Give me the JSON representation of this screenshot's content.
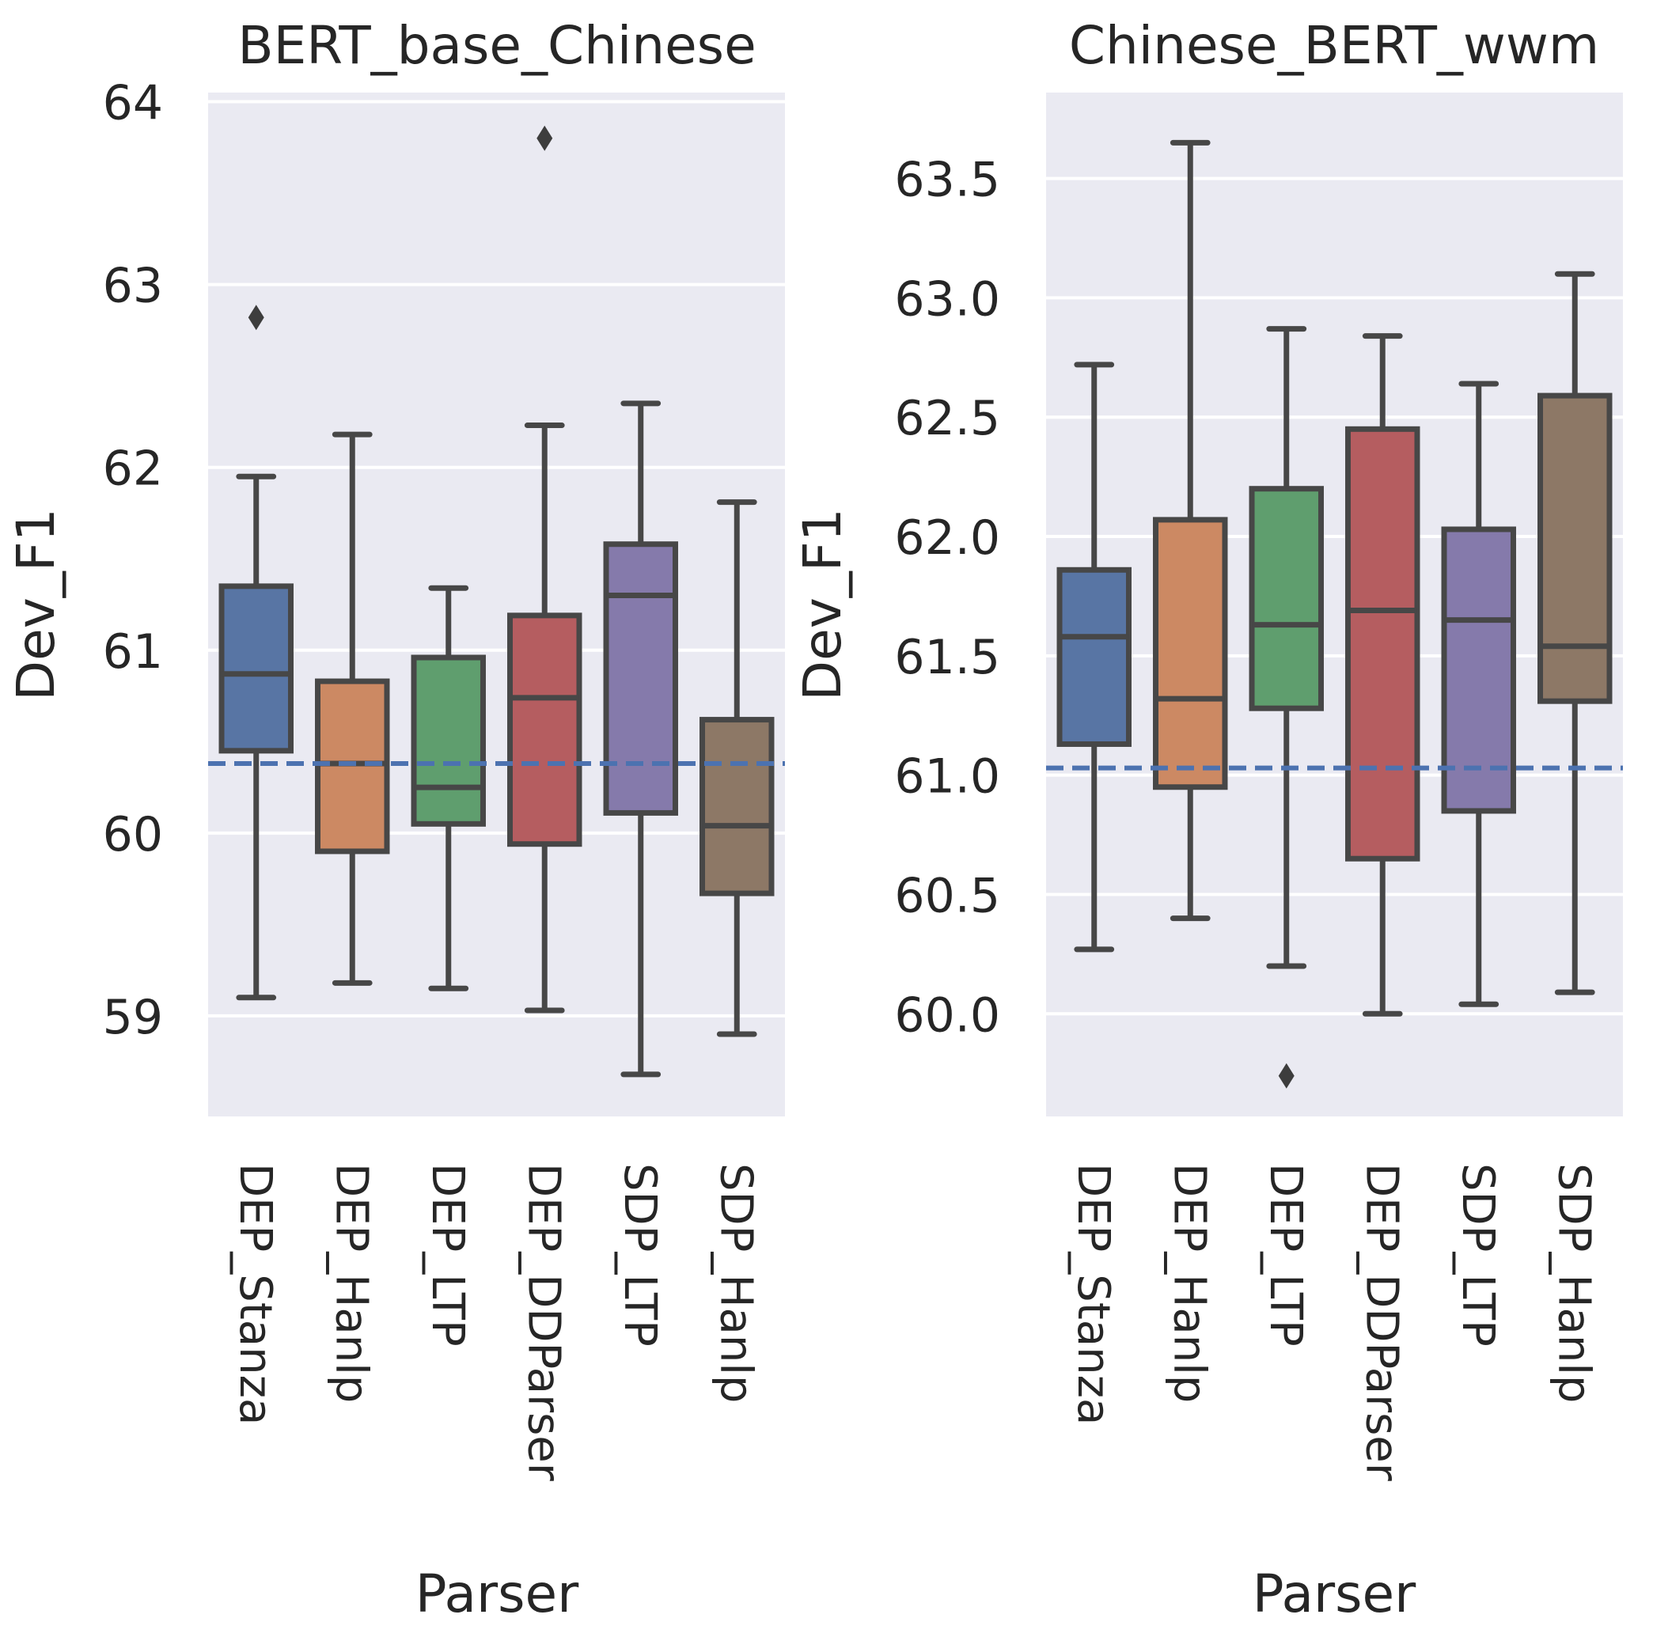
{
  "chart_data": [
    {
      "type": "box",
      "title": "BERT_base_Chinese",
      "xlabel": "Parser",
      "ylabel": "Dev_F1",
      "ylim": [
        58.45,
        64.05
      ],
      "yticks": [
        59,
        60,
        61,
        62,
        63,
        64
      ],
      "ytick_labels": [
        "59",
        "60",
        "61",
        "62",
        "63",
        "64"
      ],
      "reference_line": 60.38,
      "grid": true,
      "categories": [
        "DEP_Stanza",
        "DEP_Hanlp",
        "DEP_LTP",
        "DEP_DDParser",
        "SDP_LTP",
        "SDP_Hanlp"
      ],
      "colors": [
        "#5875a4",
        "#cc8963",
        "#5f9e6e",
        "#b55d60",
        "#857aab",
        "#8d7866"
      ],
      "boxes": [
        {
          "whislo": 59.1,
          "q1": 60.45,
          "med": 60.87,
          "q3": 61.35,
          "whishi": 61.95,
          "fliers": [
            62.82
          ]
        },
        {
          "whislo": 59.18,
          "q1": 59.9,
          "med": 60.38,
          "q3": 60.83,
          "whishi": 62.18,
          "fliers": []
        },
        {
          "whislo": 59.15,
          "q1": 60.05,
          "med": 60.25,
          "q3": 60.96,
          "whishi": 61.34,
          "fliers": []
        },
        {
          "whislo": 59.03,
          "q1": 59.94,
          "med": 60.74,
          "q3": 61.19,
          "whishi": 62.23,
          "fliers": [
            63.8
          ]
        },
        {
          "whislo": 58.68,
          "q1": 60.11,
          "med": 61.3,
          "q3": 61.58,
          "whishi": 62.35,
          "fliers": []
        },
        {
          "whislo": 58.9,
          "q1": 59.67,
          "med": 60.04,
          "q3": 60.62,
          "whishi": 61.81,
          "fliers": []
        }
      ]
    },
    {
      "type": "box",
      "title": "Chinese_BERT_wwm",
      "xlabel": "Parser",
      "ylabel": "Dev_F1",
      "ylim": [
        59.57,
        63.86
      ],
      "yticks": [
        60.0,
        60.5,
        61.0,
        61.5,
        62.0,
        62.5,
        63.0,
        63.5
      ],
      "ytick_labels": [
        "60.0",
        "60.5",
        "61.0",
        "61.5",
        "62.0",
        "62.5",
        "63.0",
        "63.5"
      ],
      "reference_line": 61.03,
      "grid": true,
      "categories": [
        "DEP_Stanza",
        "DEP_Hanlp",
        "DEP_LTP",
        "DEP_DDParser",
        "SDP_LTP",
        "SDP_Hanlp"
      ],
      "colors": [
        "#5875a4",
        "#cc8963",
        "#5f9e6e",
        "#b55d60",
        "#857aab",
        "#8d7866"
      ],
      "boxes": [
        {
          "whislo": 60.27,
          "q1": 61.13,
          "med": 61.58,
          "q3": 61.86,
          "whishi": 62.72,
          "fliers": []
        },
        {
          "whislo": 60.4,
          "q1": 60.95,
          "med": 61.32,
          "q3": 62.07,
          "whishi": 63.65,
          "fliers": []
        },
        {
          "whislo": 60.2,
          "q1": 61.28,
          "med": 61.63,
          "q3": 62.2,
          "whishi": 62.87,
          "fliers": [
            59.74
          ]
        },
        {
          "whislo": 60.0,
          "q1": 60.65,
          "med": 61.69,
          "q3": 62.45,
          "whishi": 62.84,
          "fliers": []
        },
        {
          "whislo": 60.04,
          "q1": 60.85,
          "med": 61.65,
          "q3": 62.03,
          "whishi": 62.64,
          "fliers": []
        },
        {
          "whislo": 60.09,
          "q1": 61.31,
          "med": 61.54,
          "q3": 62.59,
          "whishi": 63.1,
          "fliers": []
        }
      ]
    }
  ]
}
